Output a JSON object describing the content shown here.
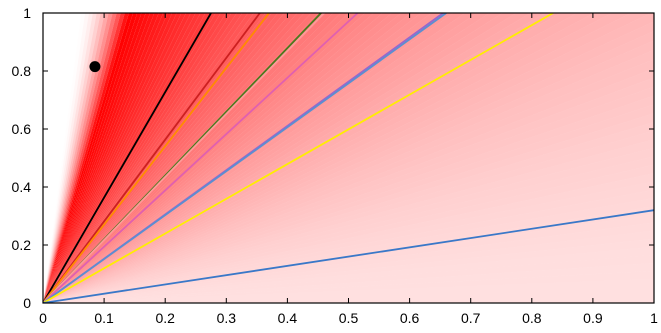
{
  "chart_data": {
    "type": "line",
    "title": "",
    "xlabel": "",
    "ylabel": "",
    "xlim": [
      0,
      1
    ],
    "ylim": [
      0,
      1
    ],
    "xticks": [
      "0",
      "0.1",
      "0.2",
      "0.3",
      "0.4",
      "0.5",
      "0.6",
      "0.7",
      "0.8",
      "0.9",
      "1"
    ],
    "yticks": [
      "0",
      "0.2",
      "0.4",
      "0.6",
      "0.8",
      "1"
    ],
    "grid": false,
    "legend": "none",
    "background_gradient": {
      "type": "wedge-from-origin",
      "color": "#ff0000",
      "peak_slope": 1.6,
      "slope_range": [
        0.32,
        3.7
      ]
    },
    "series": [
      {
        "color": "#000000",
        "values": [
          [
            0,
            0
          ],
          [
            0.275,
            1
          ]
        ]
      },
      {
        "color": "#cc2020",
        "values": [
          [
            0,
            0
          ],
          [
            0.355,
            1
          ]
        ]
      },
      {
        "color": "#ff8c00",
        "values": [
          [
            0,
            0
          ],
          [
            0.37,
            1
          ]
        ]
      },
      {
        "color": "#4a7a1e",
        "values": [
          [
            0,
            0
          ],
          [
            0.455,
            1
          ]
        ]
      },
      {
        "color": "#ff9999",
        "values": [
          [
            0,
            0
          ],
          [
            0.46,
            1
          ]
        ]
      },
      {
        "color": "#e060b0",
        "values": [
          [
            0,
            0
          ],
          [
            0.515,
            1
          ]
        ]
      },
      {
        "color": "#9966cc",
        "values": [
          [
            0,
            0
          ],
          [
            0.655,
            1
          ]
        ]
      },
      {
        "color": "#5b8fd0",
        "values": [
          [
            0,
            0
          ],
          [
            0.66,
            1
          ]
        ]
      },
      {
        "color": "#ffee00",
        "values": [
          [
            0,
            0
          ],
          [
            0.835,
            1
          ]
        ]
      },
      {
        "color": "#3a78c8",
        "values": [
          [
            0,
            0
          ],
          [
            1,
            0.32
          ]
        ]
      }
    ],
    "points": [
      {
        "x": 0.085,
        "y": 0.815,
        "color": "#000000"
      }
    ]
  }
}
